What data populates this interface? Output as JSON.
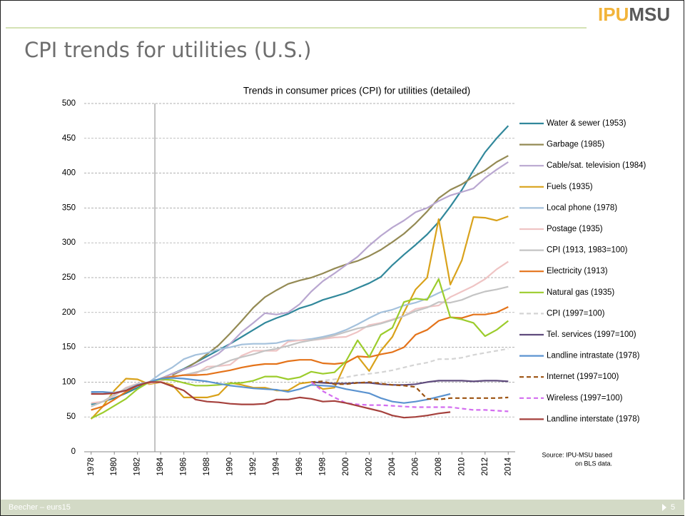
{
  "slide": {
    "logo": {
      "part1": "IPU",
      "part2": "MSU"
    },
    "title": "CPI trends for utilities (U.S.)",
    "footer_left": "Beecher – eurs15",
    "footer_right": "5"
  },
  "chart_data": {
    "type": "line",
    "title": "Trends in consumer prices (CPI) for utilities (detailed)",
    "annotations": [
      "Source: IPU-MSU  based",
      "on BLS data."
    ],
    "x": [
      1978,
      1979,
      1980,
      1981,
      1982,
      1983,
      1984,
      1985,
      1986,
      1987,
      1988,
      1989,
      1990,
      1991,
      1992,
      1993,
      1994,
      1995,
      1996,
      1997,
      1998,
      1999,
      2000,
      2001,
      2002,
      2003,
      2004,
      2005,
      2006,
      2007,
      2008,
      2009,
      2010,
      2011,
      2012,
      2013,
      2014
    ],
    "xlim": [
      1977.4,
      2014.6
    ],
    "xticks": [
      1978,
      1980,
      1982,
      1984,
      1986,
      1988,
      1990,
      1992,
      1994,
      1996,
      1998,
      2000,
      2002,
      2004,
      2006,
      2008,
      2010,
      2012,
      2014
    ],
    "ylim": [
      0,
      500
    ],
    "yticks": [
      0,
      50,
      100,
      150,
      200,
      250,
      300,
      350,
      400,
      450,
      500
    ],
    "grid": true,
    "reference_x": 1983.5,
    "legend": "right",
    "series": [
      {
        "name": "Water & sewer (1953)",
        "color": "#31889b",
        "values": [
          68,
          72,
          77,
          84,
          92,
          100,
          105,
          112,
          119,
          128,
          137,
          146,
          155,
          165,
          175,
          185,
          192,
          198,
          206,
          211,
          218,
          223,
          228,
          235,
          242,
          251,
          268,
          283,
          297,
          312,
          330,
          352,
          376,
          404,
          430,
          450,
          468
        ]
      },
      {
        "name": "Garbage (1985)",
        "color": "#948a54",
        "values": [
          null,
          null,
          null,
          null,
          null,
          null,
          null,
          110,
          118,
          128,
          140,
          153,
          170,
          188,
          207,
          222,
          232,
          241,
          246,
          250,
          256,
          263,
          269,
          274,
          281,
          290,
          301,
          313,
          328,
          345,
          364,
          376,
          384,
          395,
          404,
          416,
          425
        ]
      },
      {
        "name": "Cable/sat. television (1984)",
        "color": "#b9a7d0",
        "values": [
          null,
          null,
          null,
          null,
          null,
          null,
          105,
          112,
          118,
          124,
          132,
          141,
          155,
          172,
          185,
          199,
          197,
          200,
          212,
          230,
          245,
          256,
          268,
          280,
          296,
          310,
          322,
          332,
          344,
          350,
          360,
          368,
          373,
          378,
          393,
          405,
          416
        ]
      },
      {
        "name": "Fuels (1935)",
        "color": "#d9a21b",
        "values": [
          47,
          65,
          88,
          105,
          104,
          97,
          100,
          96,
          78,
          78,
          78,
          82,
          99,
          96,
          92,
          92,
          88,
          88,
          98,
          100,
          90,
          92,
          128,
          137,
          116,
          145,
          165,
          200,
          233,
          250,
          334,
          240,
          275,
          337,
          336,
          332,
          338
        ]
      },
      {
        "name": "Local phone (1978)",
        "color": "#a4c1dc",
        "values": [
          85,
          86,
          85,
          88,
          95,
          100,
          112,
          121,
          133,
          139,
          142,
          147,
          150,
          154,
          155,
          155,
          156,
          160,
          160,
          162,
          165,
          169,
          175,
          183,
          192,
          200,
          204,
          210,
          214,
          220,
          228,
          235,
          null,
          null,
          null,
          null,
          null
        ]
      },
      {
        "name": "Postage (1935)",
        "color": "#efc4c4",
        "values": [
          70,
          72,
          80,
          92,
          98,
          98,
          101,
          108,
          110,
          112,
          122,
          123,
          125,
          138,
          145,
          145,
          145,
          158,
          160,
          160,
          162,
          164,
          165,
          172,
          182,
          185,
          190,
          195,
          205,
          208,
          210,
          222,
          230,
          238,
          248,
          262,
          273
        ]
      },
      {
        "name": "CPI (1913, 1983=100)",
        "color": "#c4c4c4",
        "values": [
          65,
          72,
          82,
          91,
          97,
          100,
          104,
          108,
          110,
          114,
          118,
          124,
          131,
          136,
          140,
          145,
          148,
          152,
          157,
          160,
          163,
          167,
          172,
          177,
          180,
          184,
          189,
          195,
          202,
          207,
          215,
          214,
          218,
          225,
          230,
          233,
          237
        ]
      },
      {
        "name": "Electricity (1913)",
        "color": "#e4731a",
        "values": [
          60,
          65,
          75,
          86,
          95,
          99,
          105,
          108,
          110,
          110,
          111,
          114,
          117,
          121,
          124,
          126,
          126,
          130,
          132,
          132,
          127,
          126,
          128,
          137,
          136,
          140,
          143,
          150,
          168,
          175,
          188,
          193,
          192,
          197,
          197,
          200,
          208
        ]
      },
      {
        "name": "Natural gas (1935)",
        "color": "#9ccc2c",
        "values": [
          48,
          56,
          66,
          76,
          90,
          100,
          104,
          103,
          99,
          95,
          95,
          96,
          98,
          99,
          102,
          108,
          108,
          104,
          107,
          115,
          112,
          114,
          130,
          160,
          136,
          168,
          178,
          215,
          220,
          218,
          248,
          193,
          190,
          185,
          166,
          175,
          188
        ]
      },
      {
        "name": "CPI (1997=100)",
        "color": "#d4d4d4",
        "dash": true,
        "values": [
          null,
          null,
          null,
          null,
          null,
          null,
          null,
          null,
          null,
          null,
          null,
          null,
          null,
          null,
          null,
          null,
          null,
          null,
          null,
          100,
          102,
          104,
          107,
          110,
          112,
          114,
          117,
          121,
          125,
          128,
          133,
          133,
          135,
          139,
          142,
          145,
          148
        ]
      },
      {
        "name": "Tel. services (1997=100)",
        "color": "#5f4b7d",
        "values": [
          null,
          null,
          null,
          null,
          null,
          null,
          null,
          null,
          null,
          null,
          null,
          null,
          null,
          null,
          null,
          null,
          null,
          null,
          null,
          100,
          99,
          98,
          98,
          99,
          99,
          97,
          96,
          96,
          97,
          100,
          102,
          102,
          102,
          101,
          102,
          102,
          101
        ]
      },
      {
        "name": "Landline intrastate (1978)",
        "color": "#5b93d0",
        "values": [
          86,
          86,
          84,
          88,
          96,
          100,
          105,
          106,
          105,
          103,
          101,
          98,
          95,
          93,
          91,
          90,
          89,
          86,
          90,
          96,
          95,
          94,
          90,
          87,
          84,
          77,
          72,
          70,
          72,
          75,
          79,
          83,
          null,
          null,
          null,
          null,
          null
        ]
      },
      {
        "name": "Internet (1997=100)",
        "color": "#9c5210",
        "dash": true,
        "values": [
          null,
          null,
          null,
          null,
          null,
          null,
          null,
          null,
          null,
          null,
          null,
          null,
          null,
          null,
          null,
          null,
          null,
          null,
          null,
          100,
          101,
          97,
          97,
          99,
          100,
          98,
          96,
          95,
          93,
          76,
          75,
          77,
          77,
          77,
          77,
          77,
          78
        ]
      },
      {
        "name": "Wireless (1997=100)",
        "color": "#d36df0",
        "dash": true,
        "values": [
          null,
          null,
          null,
          null,
          null,
          null,
          null,
          null,
          null,
          null,
          null,
          null,
          null,
          null,
          null,
          null,
          null,
          null,
          null,
          100,
          87,
          78,
          70,
          68,
          67,
          67,
          66,
          65,
          64,
          64,
          64,
          64,
          62,
          60,
          60,
          59,
          58
        ]
      },
      {
        "name": "Landline interstate (1978)",
        "color": "#a5403c",
        "values": [
          83,
          83,
          84,
          88,
          95,
          100,
          100,
          94,
          88,
          75,
          72,
          71,
          69,
          68,
          68,
          69,
          75,
          75,
          78,
          76,
          72,
          73,
          70,
          66,
          62,
          58,
          52,
          49,
          50,
          52,
          55,
          57,
          null,
          null,
          null,
          null,
          null
        ]
      }
    ]
  }
}
